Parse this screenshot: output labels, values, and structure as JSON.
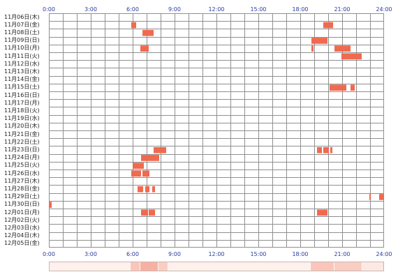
{
  "x_axis": {
    "ticks": [
      "0:00",
      "3:00",
      "6:00",
      "9:00",
      "12:00",
      "15:00",
      "18:00",
      "21:00",
      "24:00"
    ],
    "tick_hours": [
      0,
      3,
      6,
      9,
      12,
      15,
      18,
      21,
      24
    ]
  },
  "colors": {
    "grid": "#8f8f8f",
    "bar": "#f06a4f",
    "bar_light": "#ffd9cf",
    "tick_text": "#2b3a9c"
  },
  "chart_data": {
    "type": "heatmap",
    "x_range_hours": [
      0,
      24
    ],
    "rows": [
      {
        "label": "11月06日(木)",
        "segments": []
      },
      {
        "label": "11月07日(金)",
        "segments": [
          [
            5.9,
            6.25
          ],
          [
            19.65,
            20.35
          ]
        ]
      },
      {
        "label": "11月08日(土)",
        "segments": [
          [
            6.7,
            7.5
          ]
        ]
      },
      {
        "label": "11月09日(日)",
        "segments": [
          [
            18.8,
            19.95
          ]
        ]
      },
      {
        "label": "11月10日(月)",
        "segments": [
          [
            6.55,
            7.15
          ],
          [
            18.8,
            18.95
          ],
          [
            20.45,
            21.6
          ]
        ]
      },
      {
        "label": "11月11日(火)",
        "segments": [
          [
            20.95,
            22.4
          ]
        ]
      },
      {
        "label": "11月12日(水)",
        "segments": []
      },
      {
        "label": "11月13日(木)",
        "segments": []
      },
      {
        "label": "11月14日(金)",
        "segments": []
      },
      {
        "label": "11月15日(土)",
        "segments": [
          [
            20.1,
            21.3
          ],
          [
            21.6,
            21.9
          ]
        ]
      },
      {
        "label": "11月16日(日)",
        "segments": []
      },
      {
        "label": "11月17日(月)",
        "segments": []
      },
      {
        "label": "11月18日(火)",
        "segments": []
      },
      {
        "label": "11月19日(水)",
        "segments": []
      },
      {
        "label": "11月20日(木)",
        "segments": []
      },
      {
        "label": "11月21日(金)",
        "segments": []
      },
      {
        "label": "11月22日(土)",
        "segments": []
      },
      {
        "label": "11月23日(日)",
        "segments": [
          [
            7.5,
            8.4
          ],
          [
            19.2,
            19.55
          ],
          [
            19.65,
            20.05
          ],
          [
            20.15,
            20.3
          ]
        ]
      },
      {
        "label": "11月24日(月)",
        "segments": [
          [
            6.6,
            7.9
          ]
        ]
      },
      {
        "label": "11月25日(火)",
        "segments": [
          [
            6.0,
            6.8
          ]
        ]
      },
      {
        "label": "11月26日(水)",
        "segments": [
          [
            5.9,
            6.6
          ],
          [
            6.7,
            7.2
          ]
        ]
      },
      {
        "label": "11月27日(木)",
        "segments": []
      },
      {
        "label": "11月28日(金)",
        "segments": [
          [
            6.35,
            6.75
          ],
          [
            6.9,
            7.2
          ],
          [
            7.4,
            7.6
          ]
        ]
      },
      {
        "label": "11月29日(土)",
        "segments": [
          [
            22.95,
            23.05
          ],
          [
            23.65,
            24.0
          ]
        ]
      },
      {
        "label": "11月30日(日)",
        "segments": [
          [
            0.0,
            0.2
          ]
        ]
      },
      {
        "label": "12月01日(月)",
        "segments": [
          [
            6.6,
            7.1
          ],
          [
            7.15,
            7.6
          ],
          [
            19.2,
            19.95
          ]
        ]
      },
      {
        "label": "12月02日(火)",
        "segments": []
      },
      {
        "label": "12月03日(水)",
        "segments": []
      },
      {
        "label": "12月04日(木)",
        "segments": []
      },
      {
        "label": "12月05日(金)",
        "segments": []
      }
    ],
    "summary_strip": [
      {
        "range": [
          0.0,
          5.8
        ],
        "level": 0.05
      },
      {
        "range": [
          5.8,
          6.5
        ],
        "level": 0.35
      },
      {
        "range": [
          6.5,
          7.8
        ],
        "level": 0.5
      },
      {
        "range": [
          7.8,
          8.5
        ],
        "level": 0.3
      },
      {
        "range": [
          8.5,
          18.7
        ],
        "level": 0.05
      },
      {
        "range": [
          18.7,
          20.4
        ],
        "level": 0.35
      },
      {
        "range": [
          20.4,
          22.4
        ],
        "level": 0.3
      },
      {
        "range": [
          22.4,
          24.0
        ],
        "level": 0.1
      }
    ]
  }
}
